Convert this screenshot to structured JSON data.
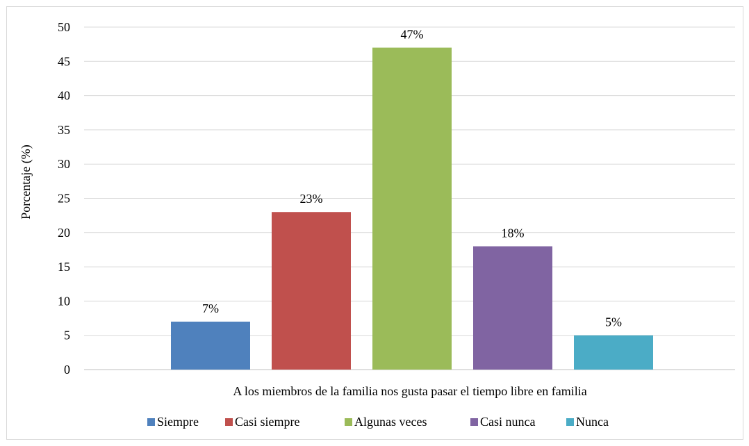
{
  "chart_data": {
    "type": "bar",
    "xlabel": "A los miembros de la familia nos gusta pasar el tiempo libre en familia",
    "ylabel": "Porcentaje (%)",
    "ylim": [
      0,
      50
    ],
    "yticks": [
      0,
      5,
      10,
      15,
      20,
      25,
      30,
      35,
      40,
      45,
      50
    ],
    "grid": true,
    "legend_position": "bottom",
    "series": [
      {
        "name": "Siempre",
        "value": 7,
        "label": "7%",
        "color": "#4f81bd"
      },
      {
        "name": "Casi siempre",
        "value": 23,
        "label": "23%",
        "color": "#c0504d"
      },
      {
        "name": "Algunas veces",
        "value": 47,
        "label": "47%",
        "color": "#9bbb59"
      },
      {
        "name": "Casi nunca",
        "value": 18,
        "label": "18%",
        "color": "#8064a2"
      },
      {
        "name": "Nunca",
        "value": 5,
        "label": "5%",
        "color": "#4bacc6"
      }
    ]
  }
}
